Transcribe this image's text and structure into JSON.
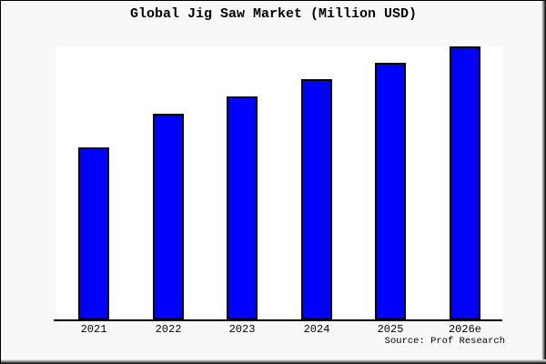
{
  "title": "Global Jig Saw Market (Million USD)",
  "source": "Source: Prof Research",
  "colors": {
    "bar_fill": "#0000ff",
    "bar_border": "#000000",
    "background": "#f8f8f8",
    "plot_background": "#ffffff",
    "axis": "#000000",
    "text": "#000000"
  },
  "chart_data": {
    "type": "bar",
    "title": "Global Jig Saw Market (Million USD)",
    "categories": [
      "2021",
      "2022",
      "2023",
      "2024",
      "2025",
      "2026e"
    ],
    "values": [
      63.0,
      75.3,
      81.7,
      88.0,
      94.0,
      100.0
    ],
    "note": "No y-axis scale or value labels are shown in the chart; values are bar heights expressed as percent of the tallest (2026e) bar",
    "xlabel": "",
    "ylabel": "",
    "ylim": [
      0,
      100
    ],
    "grid": false,
    "legend": false,
    "source": "Source: Prof Research"
  }
}
